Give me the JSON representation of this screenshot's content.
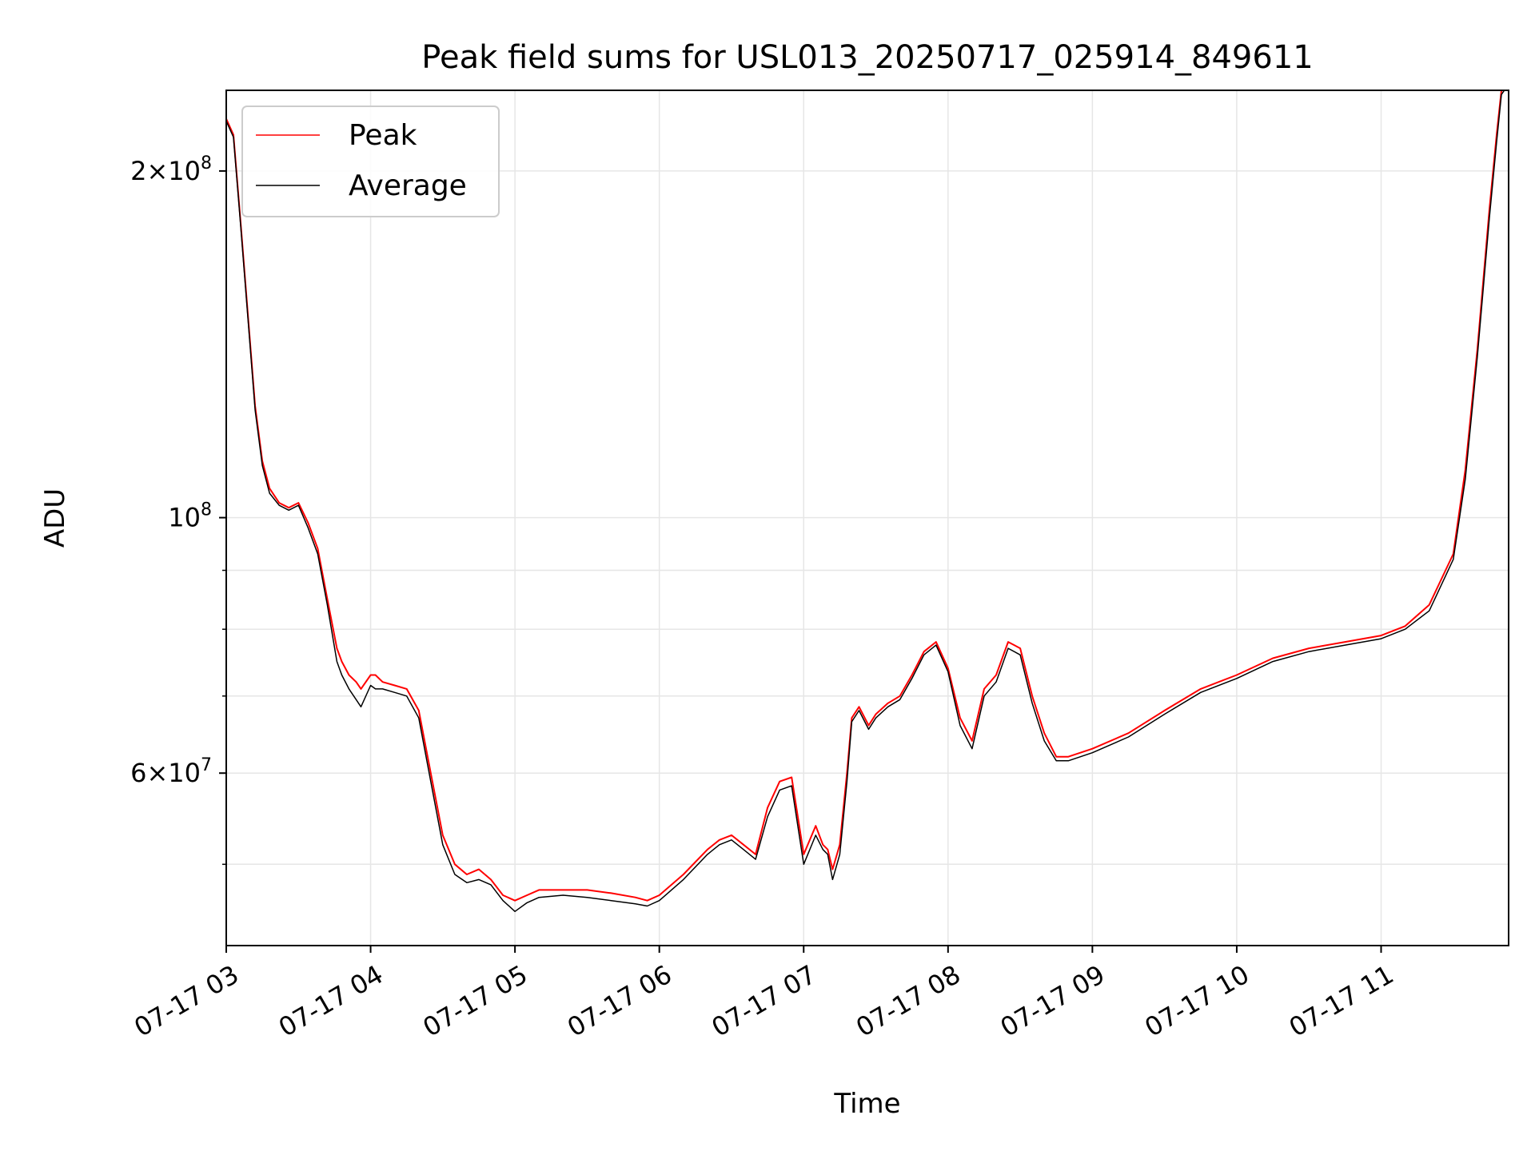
{
  "chart_data": {
    "type": "line",
    "title": "Peak field sums for USL013_20250717_025914_849611",
    "xlabel": "Time",
    "ylabel": "ADU",
    "yscale": "log",
    "ylim": [
      42500000,
      235000000
    ],
    "xlim": [
      "2025-07-17 03:00",
      "2025-07-17 11:53"
    ],
    "x_ticks": [
      "07-17 03",
      "07-17 04",
      "07-17 05",
      "07-17 06",
      "07-17 07",
      "07-17 08",
      "07-17 09",
      "07-17 10",
      "07-17 11"
    ],
    "y_tick_labels": [
      {
        "value": 200000000,
        "mantissa": "2",
        "exponent": "8"
      },
      {
        "value": 100000000,
        "mantissa": "",
        "exponent": "8"
      },
      {
        "value": 60000000,
        "mantissa": "6",
        "exponent": "7"
      }
    ],
    "y_minor_ticks": [
      50000000,
      70000000,
      80000000,
      90000000
    ],
    "grid": true,
    "legend": {
      "placement": "upper-left"
    },
    "series": [
      {
        "name": "Peak",
        "color": "#ff0000",
        "x": [
          "2025-07-17 03:00",
          "2025-07-17 03:03",
          "2025-07-17 03:06",
          "2025-07-17 03:09",
          "2025-07-17 03:12",
          "2025-07-17 03:15",
          "2025-07-17 03:18",
          "2025-07-17 03:22",
          "2025-07-17 03:26",
          "2025-07-17 03:30",
          "2025-07-17 03:34",
          "2025-07-17 03:38",
          "2025-07-17 03:42",
          "2025-07-17 03:46",
          "2025-07-17 03:48",
          "2025-07-17 03:51",
          "2025-07-17 03:54",
          "2025-07-17 03:56",
          "2025-07-17 04:00",
          "2025-07-17 04:02",
          "2025-07-17 04:05",
          "2025-07-17 04:10",
          "2025-07-17 04:15",
          "2025-07-17 04:20",
          "2025-07-17 04:25",
          "2025-07-17 04:30",
          "2025-07-17 04:35",
          "2025-07-17 04:40",
          "2025-07-17 04:45",
          "2025-07-17 04:50",
          "2025-07-17 04:55",
          "2025-07-17 05:00",
          "2025-07-17 05:05",
          "2025-07-17 05:10",
          "2025-07-17 05:20",
          "2025-07-17 05:30",
          "2025-07-17 05:40",
          "2025-07-17 05:50",
          "2025-07-17 05:55",
          "2025-07-17 06:00",
          "2025-07-17 06:10",
          "2025-07-17 06:20",
          "2025-07-17 06:25",
          "2025-07-17 06:30",
          "2025-07-17 06:35",
          "2025-07-17 06:40",
          "2025-07-17 06:45",
          "2025-07-17 06:50",
          "2025-07-17 06:55",
          "2025-07-17 07:00",
          "2025-07-17 07:05",
          "2025-07-17 07:08",
          "2025-07-17 07:10",
          "2025-07-17 07:12",
          "2025-07-17 07:15",
          "2025-07-17 07:18",
          "2025-07-17 07:20",
          "2025-07-17 07:23",
          "2025-07-17 07:27",
          "2025-07-17 07:30",
          "2025-07-17 07:35",
          "2025-07-17 07:40",
          "2025-07-17 07:45",
          "2025-07-17 07:50",
          "2025-07-17 07:55",
          "2025-07-17 08:00",
          "2025-07-17 08:05",
          "2025-07-17 08:10",
          "2025-07-17 08:15",
          "2025-07-17 08:20",
          "2025-07-17 08:25",
          "2025-07-17 08:30",
          "2025-07-17 08:35",
          "2025-07-17 08:40",
          "2025-07-17 08:45",
          "2025-07-17 08:50",
          "2025-07-17 09:00",
          "2025-07-17 09:15",
          "2025-07-17 09:30",
          "2025-07-17 09:45",
          "2025-07-17 10:00",
          "2025-07-17 10:15",
          "2025-07-17 10:30",
          "2025-07-17 10:45",
          "2025-07-17 11:00",
          "2025-07-17 11:10",
          "2025-07-17 11:20",
          "2025-07-17 11:30",
          "2025-07-17 11:35",
          "2025-07-17 11:40",
          "2025-07-17 11:45",
          "2025-07-17 11:48",
          "2025-07-17 11:50",
          "2025-07-17 11:53"
        ],
        "values": [
          222000000,
          215000000,
          180000000,
          150000000,
          125000000,
          112000000,
          106000000,
          103000000,
          102000000,
          103000000,
          99000000,
          94000000,
          85000000,
          77000000,
          75000000,
          73000000,
          72000000,
          71000000,
          73000000,
          73000000,
          72000000,
          71500000,
          71000000,
          68000000,
          60000000,
          53000000,
          50000000,
          49000000,
          49500000,
          48500000,
          47000000,
          46500000,
          47000000,
          47500000,
          47500000,
          47500000,
          47200000,
          46800000,
          46500000,
          47000000,
          49000000,
          51500000,
          52500000,
          53000000,
          52000000,
          51000000,
          56000000,
          59000000,
          59500000,
          51000000,
          54000000,
          52000000,
          51500000,
          49500000,
          52000000,
          60000000,
          67000000,
          68500000,
          66000000,
          67500000,
          69000000,
          70000000,
          73000000,
          76500000,
          78000000,
          74000000,
          67000000,
          64000000,
          71000000,
          73000000,
          78000000,
          77000000,
          70000000,
          65000000,
          62000000,
          62000000,
          63000000,
          65000000,
          68000000,
          71000000,
          73000000,
          75500000,
          77000000,
          78000000,
          79000000,
          80500000,
          84000000,
          93000000,
          110000000,
          140000000,
          185000000,
          215000000,
          235000000,
          240000000
        ]
      },
      {
        "name": "Average",
        "color": "#000000",
        "x": [
          "2025-07-17 03:00",
          "2025-07-17 03:03",
          "2025-07-17 03:06",
          "2025-07-17 03:09",
          "2025-07-17 03:12",
          "2025-07-17 03:15",
          "2025-07-17 03:18",
          "2025-07-17 03:22",
          "2025-07-17 03:26",
          "2025-07-17 03:30",
          "2025-07-17 03:34",
          "2025-07-17 03:38",
          "2025-07-17 03:42",
          "2025-07-17 03:46",
          "2025-07-17 03:48",
          "2025-07-17 03:51",
          "2025-07-17 03:54",
          "2025-07-17 03:56",
          "2025-07-17 04:00",
          "2025-07-17 04:02",
          "2025-07-17 04:05",
          "2025-07-17 04:10",
          "2025-07-17 04:15",
          "2025-07-17 04:20",
          "2025-07-17 04:25",
          "2025-07-17 04:30",
          "2025-07-17 04:35",
          "2025-07-17 04:40",
          "2025-07-17 04:45",
          "2025-07-17 04:50",
          "2025-07-17 04:55",
          "2025-07-17 05:00",
          "2025-07-17 05:05",
          "2025-07-17 05:10",
          "2025-07-17 05:20",
          "2025-07-17 05:30",
          "2025-07-17 05:40",
          "2025-07-17 05:50",
          "2025-07-17 05:55",
          "2025-07-17 06:00",
          "2025-07-17 06:10",
          "2025-07-17 06:20",
          "2025-07-17 06:25",
          "2025-07-17 06:30",
          "2025-07-17 06:35",
          "2025-07-17 06:40",
          "2025-07-17 06:45",
          "2025-07-17 06:50",
          "2025-07-17 06:55",
          "2025-07-17 07:00",
          "2025-07-17 07:05",
          "2025-07-17 07:08",
          "2025-07-17 07:10",
          "2025-07-17 07:12",
          "2025-07-17 07:15",
          "2025-07-17 07:18",
          "2025-07-17 07:20",
          "2025-07-17 07:23",
          "2025-07-17 07:27",
          "2025-07-17 07:30",
          "2025-07-17 07:35",
          "2025-07-17 07:40",
          "2025-07-17 07:45",
          "2025-07-17 07:50",
          "2025-07-17 07:55",
          "2025-07-17 08:00",
          "2025-07-17 08:05",
          "2025-07-17 08:10",
          "2025-07-17 08:15",
          "2025-07-17 08:20",
          "2025-07-17 08:25",
          "2025-07-17 08:30",
          "2025-07-17 08:35",
          "2025-07-17 08:40",
          "2025-07-17 08:45",
          "2025-07-17 08:50",
          "2025-07-17 09:00",
          "2025-07-17 09:15",
          "2025-07-17 09:30",
          "2025-07-17 09:45",
          "2025-07-17 10:00",
          "2025-07-17 10:15",
          "2025-07-17 10:30",
          "2025-07-17 10:45",
          "2025-07-17 11:00",
          "2025-07-17 11:10",
          "2025-07-17 11:20",
          "2025-07-17 11:30",
          "2025-07-17 11:35",
          "2025-07-17 11:40",
          "2025-07-17 11:45",
          "2025-07-17 11:48",
          "2025-07-17 11:50",
          "2025-07-17 11:53"
        ],
        "values": [
          221000000,
          214000000,
          179000000,
          149000000,
          124000000,
          111000000,
          105000000,
          102500000,
          101500000,
          102500000,
          98000000,
          93000000,
          84000000,
          75000000,
          73000000,
          71000000,
          69500000,
          68500000,
          71500000,
          71000000,
          71000000,
          70500000,
          70000000,
          67000000,
          59000000,
          52000000,
          49000000,
          48200000,
          48500000,
          48000000,
          46500000,
          45500000,
          46300000,
          46800000,
          47000000,
          46800000,
          46500000,
          46200000,
          46000000,
          46500000,
          48500000,
          51000000,
          52000000,
          52500000,
          51500000,
          50500000,
          55000000,
          58000000,
          58500000,
          50000000,
          53000000,
          51500000,
          51000000,
          48500000,
          51000000,
          59000000,
          66500000,
          68000000,
          65500000,
          67000000,
          68500000,
          69500000,
          72500000,
          76000000,
          77500000,
          73500000,
          66000000,
          63000000,
          70000000,
          72000000,
          77000000,
          76000000,
          69000000,
          64000000,
          61500000,
          61500000,
          62500000,
          64500000,
          67500000,
          70500000,
          72500000,
          75000000,
          76500000,
          77500000,
          78500000,
          80000000,
          83000000,
          92000000,
          108000000,
          138000000,
          182000000,
          212000000,
          233000000,
          238000000
        ]
      }
    ]
  }
}
